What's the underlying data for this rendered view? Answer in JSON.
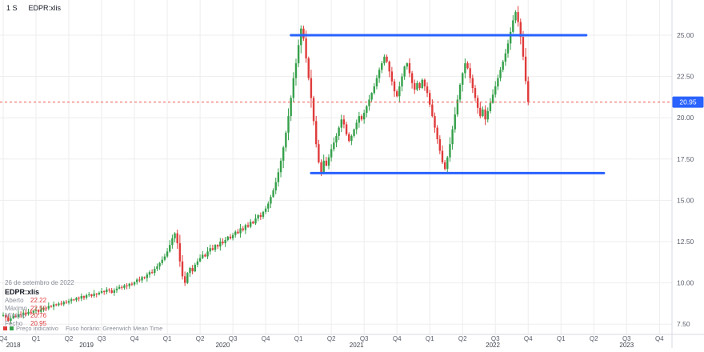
{
  "header": {
    "interval": "1 S",
    "symbol": "EDPR:xlis"
  },
  "legend": {
    "date": "26 de setembro de 2022",
    "symbol": "EDPR:xlis",
    "rows": [
      {
        "label": "Aberto",
        "value": "22.22"
      },
      {
        "label": "Máximo",
        "value": "22.50"
      },
      {
        "label": "Mínimo",
        "value": "20.76"
      },
      {
        "label": "Fecho",
        "value": "20.95"
      }
    ]
  },
  "footer": {
    "indicative": "Preço indicativo",
    "timezone": "Fuso horário: Greenwich Mean Time"
  },
  "colors": {
    "up": "#35a04a",
    "down": "#e03b3b",
    "trendline": "#2962ff",
    "price_line": "#f0544c",
    "badge": "#2962ff",
    "grid": "#ededed",
    "separator": "#d6d8e0",
    "axis_text": "#5a5e6b",
    "year_text": "#3c4049"
  },
  "chart_data": {
    "type": "candlestick",
    "symbol": "EDPR:xlis",
    "interval_label": "1 S",
    "range": {
      "start": "Q4 2018",
      "end": "Q4 2023"
    },
    "ylim": [
      7.0,
      27.2
    ],
    "grid": true,
    "closes": [
      8.05,
      7.9,
      7.7,
      7.85,
      8.0,
      7.95,
      8.1,
      8.05,
      8.2,
      8.1,
      8.25,
      8.2,
      8.3,
      8.35,
      8.25,
      8.4,
      8.5,
      8.45,
      8.6,
      8.55,
      8.7,
      8.65,
      8.75,
      8.7,
      8.85,
      8.8,
      8.9,
      9.0,
      8.95,
      9.1,
      9.05,
      9.2,
      9.1,
      9.25,
      9.3,
      9.2,
      9.35,
      9.3,
      9.4,
      9.5,
      9.45,
      9.6,
      9.55,
      9.4,
      9.55,
      9.65,
      9.75,
      9.7,
      9.85,
      9.8,
      9.95,
      9.9,
      10.05,
      10.2,
      10.15,
      10.35,
      10.3,
      10.5,
      10.65,
      10.6,
      10.85,
      11.0,
      11.2,
      11.4,
      11.6,
      11.9,
      12.3,
      12.7,
      13.0,
      12.4,
      11.3,
      10.4,
      10.0,
      10.6,
      10.9,
      10.7,
      11.1,
      11.3,
      11.5,
      11.7,
      11.6,
      11.9,
      12.1,
      12.0,
      12.3,
      12.2,
      12.5,
      12.4,
      12.6,
      12.8,
      12.7,
      12.9,
      13.1,
      13.0,
      13.3,
      13.2,
      13.5,
      13.4,
      13.7,
      13.6,
      13.9,
      14.1,
      14.0,
      14.3,
      14.5,
      14.8,
      15.2,
      15.6,
      16.1,
      16.7,
      17.4,
      18.2,
      19.1,
      20.1,
      21.2,
      22.4,
      23.3,
      24.4,
      25.4,
      24.8,
      23.6,
      22.4,
      21.2,
      19.8,
      18.4,
      17.3,
      16.7,
      17.4,
      17.1,
      17.6,
      18.1,
      18.5,
      18.9,
      19.4,
      19.9,
      19.6,
      19.0,
      18.6,
      18.9,
      19.3,
      19.7,
      20.1,
      19.9,
      20.3,
      20.7,
      21.1,
      21.5,
      21.9,
      22.4,
      22.9,
      23.3,
      23.7,
      23.4,
      22.8,
      22.2,
      21.6,
      21.3,
      21.9,
      22.5,
      23.1,
      23.3,
      22.7,
      22.1,
      21.7,
      22.1,
      21.8,
      22.3,
      21.9,
      21.5,
      20.8,
      20.1,
      19.4,
      18.7,
      18.0,
      17.3,
      16.9,
      17.6,
      18.4,
      19.3,
      20.2,
      21.1,
      22.0,
      22.7,
      23.3,
      23.0,
      22.4,
      21.8,
      21.2,
      20.6,
      20.1,
      20.5,
      19.9,
      20.4,
      20.9,
      21.4,
      21.9,
      22.4,
      22.9,
      23.4,
      23.9,
      24.5,
      25.2,
      25.9,
      26.4,
      25.8,
      24.9,
      23.7,
      22.22,
      20.95
    ],
    "last_candle": {
      "open": 22.22,
      "high": 22.5,
      "low": 20.76,
      "close": 20.95
    },
    "price_line": {
      "value": 20.95,
      "label": "20.95"
    },
    "trendlines": [
      {
        "price": 25.0,
        "from_week": 114,
        "to_week": 231
      },
      {
        "price": 16.65,
        "from_week": 122,
        "to_week": 238
      }
    ],
    "y_axis": {
      "ticks": [
        25.0,
        22.5,
        20.0,
        17.5,
        15.0,
        12.5,
        10.0,
        7.5
      ],
      "labels": [
        "25.00",
        "22.50",
        "20.00",
        "17.50",
        "15.00",
        "12.50",
        "10.00",
        "7.50"
      ]
    },
    "x_axis": {
      "weeks_per_quarter": 13,
      "quarter_labels": [
        "Q4",
        "Q1",
        "Q2",
        "Q3",
        "Q4",
        "Q1",
        "Q2",
        "Q3",
        "Q4",
        "Q1",
        "Q2",
        "Q3",
        "Q4",
        "Q1",
        "Q2",
        "Q3",
        "Q4",
        "Q1",
        "Q2",
        "Q3",
        "Q4"
      ],
      "years": [
        {
          "label": "2018",
          "week": 4
        },
        {
          "label": "2019",
          "week": 33
        },
        {
          "label": "2020",
          "week": 87
        },
        {
          "label": "2021",
          "week": 140
        },
        {
          "label": "2022",
          "week": 194
        },
        {
          "label": "2023",
          "week": 247
        }
      ]
    }
  }
}
